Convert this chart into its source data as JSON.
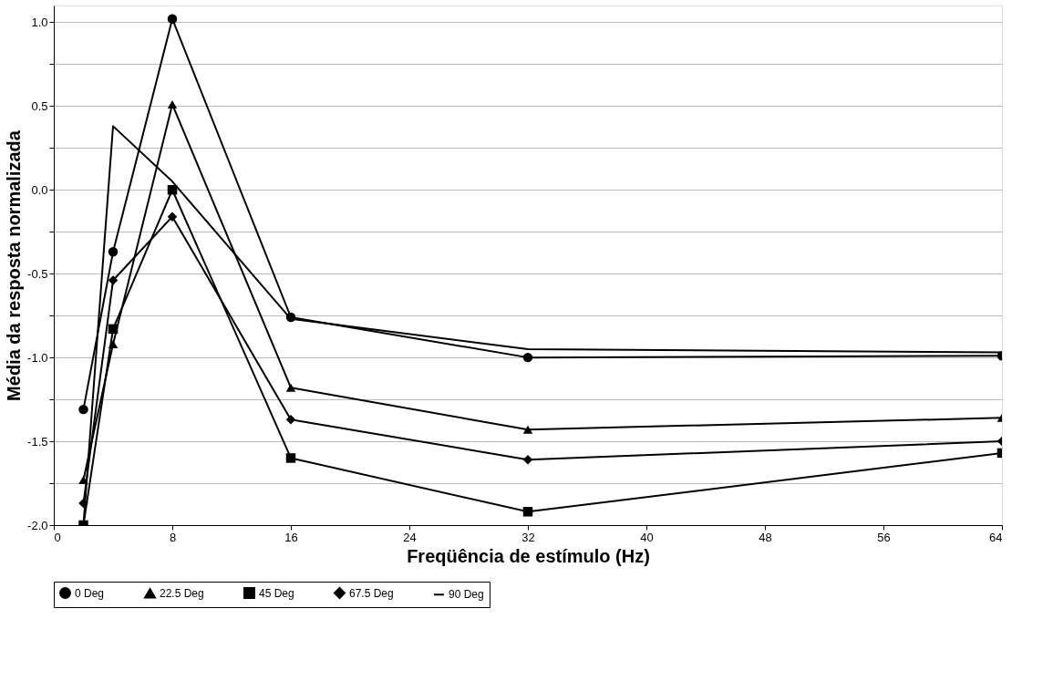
{
  "chart_data": {
    "type": "line",
    "xlabel": "Freqüência de estímulo (Hz)",
    "ylabel": "Média da resposta normalizada",
    "x": [
      2,
      4,
      8,
      16,
      32,
      64
    ],
    "series": [
      {
        "name": "0 Deg",
        "color": "#000000",
        "marker": "circle",
        "values": [
          -1.31,
          -0.37,
          1.02,
          -0.76,
          -1.0,
          -0.99
        ]
      },
      {
        "name": "22.5 Deg",
        "color": "#000000",
        "marker": "triangle",
        "values": [
          -1.73,
          -0.92,
          0.51,
          -1.18,
          -1.43,
          -1.36
        ]
      },
      {
        "name": "45 Deg",
        "color": "#000000",
        "marker": "square",
        "values": [
          -2.0,
          -0.83,
          0.0,
          -1.6,
          -1.92,
          -1.57
        ]
      },
      {
        "name": "67.5 Deg",
        "color": "#000000",
        "marker": "diamond",
        "values": [
          -1.87,
          -0.54,
          -0.16,
          -1.37,
          -1.61,
          -1.5
        ]
      },
      {
        "name": "90 Deg",
        "color": "#000000",
        "marker": "none",
        "values": [
          -2.0,
          0.38,
          0.05,
          -0.77,
          -0.95,
          -0.97
        ]
      }
    ],
    "xlim": [
      0,
      64
    ],
    "xticks": [
      0,
      8,
      16,
      24,
      32,
      40,
      48,
      56,
      64
    ],
    "ylim": [
      -2.0,
      1.1
    ],
    "yticks": [
      {
        "value": -2.0,
        "label": "-2.0"
      },
      {
        "value": -1.75,
        "label": null
      },
      {
        "value": -1.5,
        "label": "-1.5"
      },
      {
        "value": -1.25,
        "label": null
      },
      {
        "value": -1.0,
        "label": "-1.0"
      },
      {
        "value": -0.75,
        "label": null
      },
      {
        "value": -0.5,
        "label": "-0.5"
      },
      {
        "value": -0.25,
        "label": null
      },
      {
        "value": 0.0,
        "label": "0.0"
      },
      {
        "value": 0.25,
        "label": null
      },
      {
        "value": 0.5,
        "label": "0.5"
      },
      {
        "value": 0.75,
        "label": null
      },
      {
        "value": 1.0,
        "label": "1.0"
      }
    ],
    "grid": "y",
    "legend": "bottom",
    "line_style": "solid"
  }
}
